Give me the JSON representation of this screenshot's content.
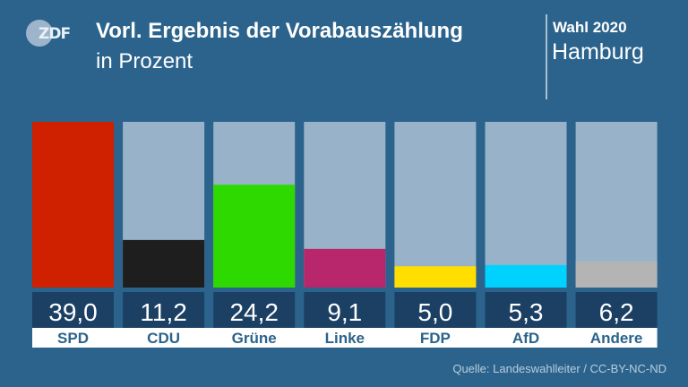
{
  "branding": {
    "logo_text": "ZDF",
    "logo_icon": "zdf-logo-icon"
  },
  "header": {
    "title": "Vorl. Ergebnis der Vorabauszählung",
    "subtitle": "in Prozent",
    "election": "Wahl 2020",
    "region": "Hamburg"
  },
  "footer": {
    "source": "Quelle: Landeswahlleiter / CC-BY-NC-ND"
  },
  "colors": {
    "background": "#2b638c",
    "bar_track": "#98b3c9",
    "value_box": "#1b4064",
    "label_box": "#ffffff",
    "label_text": "#2b638c"
  },
  "chart_data": {
    "type": "bar",
    "title": "Vorl. Ergebnis der Vorabauszählung",
    "subtitle": "in Prozent",
    "xlabel": "",
    "ylabel": "Prozent",
    "ylim": [
      0,
      39.0
    ],
    "grid": false,
    "categories": [
      "SPD",
      "CDU",
      "Grüne",
      "Linke",
      "FDP",
      "AfD",
      "Andere"
    ],
    "values": [
      39.0,
      11.2,
      24.2,
      9.1,
      5.0,
      5.3,
      6.2
    ],
    "value_labels": [
      "39,0",
      "11,2",
      "24,2",
      "9,1",
      "5,0",
      "5,3",
      "6,2"
    ],
    "bar_colors": [
      "#cf2000",
      "#1e1e1e",
      "#2ed900",
      "#b8266c",
      "#ffde00",
      "#00d2ff",
      "#b4b4b4"
    ]
  }
}
